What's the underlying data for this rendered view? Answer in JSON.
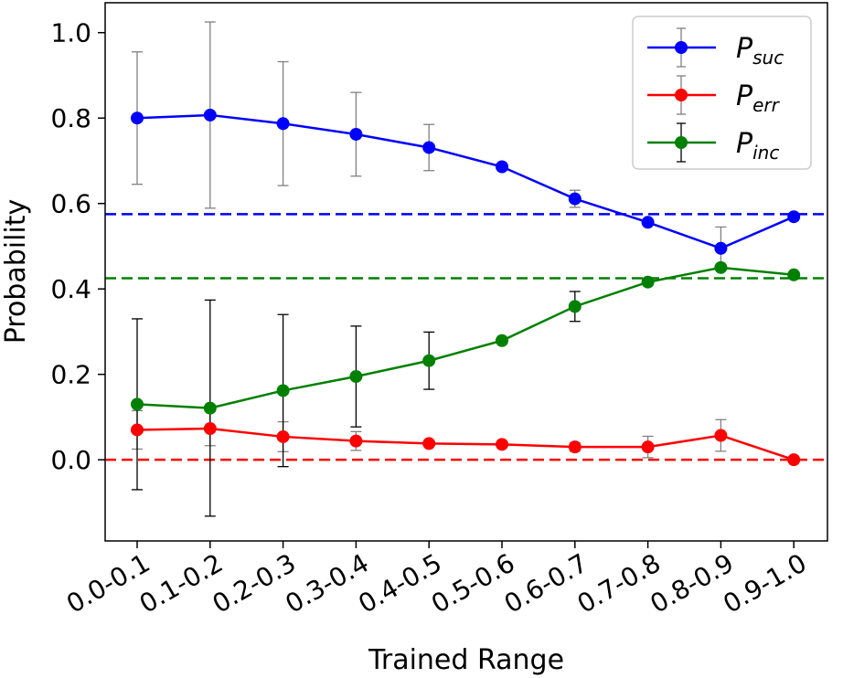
{
  "chart_data": {
    "type": "line",
    "xlabel": "Trained Range",
    "ylabel": "Probability",
    "categories": [
      "0.0-0.1",
      "0.1-0.2",
      "0.2-0.3",
      "0.3-0.4",
      "0.4-0.5",
      "0.5-0.6",
      "0.6-0.7",
      "0.7-0.8",
      "0.8-0.9",
      "0.9-1.0"
    ],
    "ylim": [
      -0.19,
      1.07
    ],
    "yticks": [
      "0.0",
      "0.2",
      "0.4",
      "0.6",
      "0.8",
      "1.0"
    ],
    "ytick_values": [
      0.0,
      0.2,
      0.4,
      0.6,
      0.8,
      1.0
    ],
    "grid": false,
    "legend_position": "top-right",
    "series": [
      {
        "name_main": "P",
        "name_sub": "suc",
        "color": "#0000ff",
        "errorbar_color": "#808080",
        "values": [
          0.8,
          0.807,
          0.787,
          0.762,
          0.731,
          0.686,
          0.611,
          0.556,
          0.495,
          0.569
        ],
        "errors": [
          0.155,
          0.218,
          0.145,
          0.098,
          0.054,
          0.0,
          0.02,
          0.0,
          0.05,
          0.0
        ]
      },
      {
        "name_main": "P",
        "name_sub": "err",
        "color": "#ff0000",
        "errorbar_color": "#808080",
        "values": [
          0.07,
          0.073,
          0.054,
          0.044,
          0.038,
          0.036,
          0.03,
          0.03,
          0.057,
          0.0
        ],
        "errors": [
          0.045,
          0.04,
          0.035,
          0.022,
          0.0,
          0.0,
          0.01,
          0.025,
          0.037,
          0.0
        ]
      },
      {
        "name_main": "P",
        "name_sub": "inc",
        "color": "#008000",
        "errorbar_color": "#000000",
        "values": [
          0.13,
          0.121,
          0.162,
          0.195,
          0.232,
          0.279,
          0.359,
          0.416,
          0.45,
          0.433
        ],
        "errors": [
          0.2,
          0.253,
          0.178,
          0.118,
          0.067,
          0.0,
          0.035,
          0.0,
          0.0,
          0.0
        ]
      }
    ],
    "reference_lines": [
      {
        "y": 0.575,
        "color": "#0000ff",
        "style": "dashed"
      },
      {
        "y": 0.425,
        "color": "#008000",
        "style": "dashed"
      },
      {
        "y": 0.0,
        "color": "#ff0000",
        "style": "dashed"
      }
    ]
  }
}
